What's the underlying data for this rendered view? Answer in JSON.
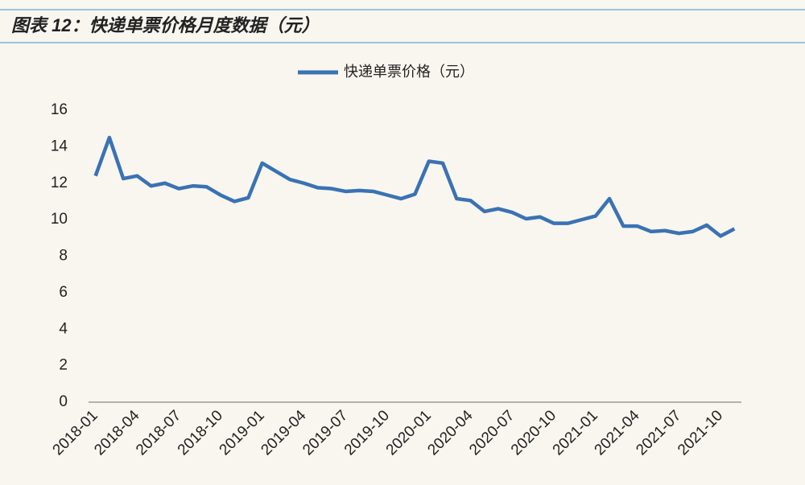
{
  "chart_data": {
    "type": "line",
    "title": "图表 12：快递单票价格月度数据（元）",
    "categories": [
      "2018-01",
      null,
      null,
      "2018-04",
      null,
      null,
      "2018-07",
      null,
      null,
      "2018-10",
      null,
      null,
      "2019-01",
      null,
      null,
      "2019-04",
      null,
      null,
      "2019-07",
      null,
      null,
      "2019-10",
      null,
      null,
      "2020-01",
      null,
      null,
      "2020-04",
      null,
      null,
      "2020-07",
      null,
      null,
      "2020-10",
      null,
      null,
      "2021-01",
      null,
      null,
      "2021-04",
      null,
      null,
      "2021-07",
      null,
      null,
      "2021-10",
      null
    ],
    "series": [
      {
        "name": "快递单票价格（元）",
        "color": "#3a72b4",
        "values": [
          12.4,
          14.5,
          12.25,
          12.4,
          11.85,
          12.0,
          11.7,
          11.85,
          11.8,
          11.35,
          11.0,
          11.2,
          13.1,
          12.65,
          12.2,
          12.0,
          11.75,
          11.7,
          11.55,
          11.6,
          11.55,
          11.35,
          11.15,
          11.4,
          13.2,
          13.1,
          11.15,
          11.05,
          10.45,
          10.6,
          10.4,
          10.05,
          10.15,
          9.8,
          9.8,
          10.0,
          10.2,
          11.15,
          9.65,
          9.65,
          9.35,
          9.4,
          9.25,
          9.35,
          9.7,
          9.1,
          9.5
        ]
      }
    ],
    "ylim": [
      0,
      16
    ],
    "yticks": [
      0,
      2,
      4,
      6,
      8,
      10,
      12,
      14,
      16
    ],
    "legend": "top"
  }
}
